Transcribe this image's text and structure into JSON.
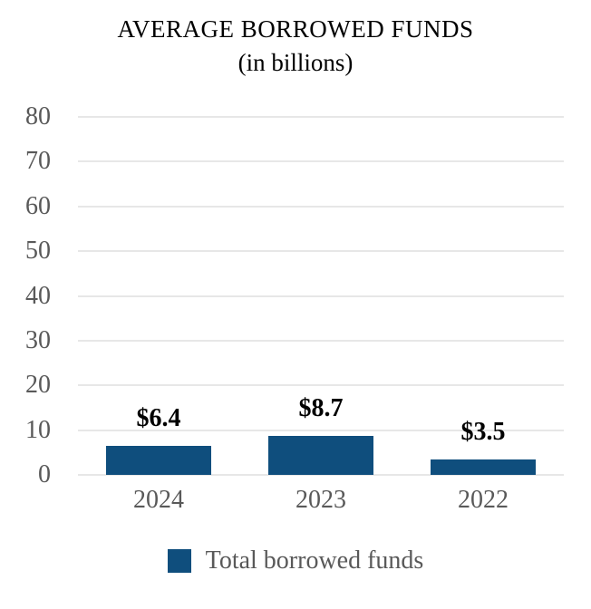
{
  "chart": {
    "title": "AVERAGE BORROWED FUNDS",
    "subtitle": "(in billions)",
    "legend_label": "Total borrowed funds",
    "colors": {
      "bar_fill": "#0F4E7D",
      "axis_text": "#595959",
      "title_text": "#000000",
      "data_label_text": "#000000",
      "gridline": "#E7E7E7",
      "background": "#FFFFFF"
    }
  },
  "chart_data": {
    "type": "bar",
    "title": "AVERAGE BORROWED FUNDS",
    "subtitle": "(in billions)",
    "categories": [
      "2024",
      "2023",
      "2022"
    ],
    "series": [
      {
        "name": "Total borrowed funds",
        "values": [
          6.4,
          8.7,
          3.5
        ]
      }
    ],
    "data_labels": [
      "$6.4",
      "$8.7",
      "$3.5"
    ],
    "xlabel": "",
    "ylabel": "",
    "ylim": [
      0,
      80
    ],
    "yticks": [
      0,
      10,
      20,
      30,
      40,
      50,
      60,
      70,
      80
    ],
    "grid": true,
    "legend_position": "bottom"
  }
}
